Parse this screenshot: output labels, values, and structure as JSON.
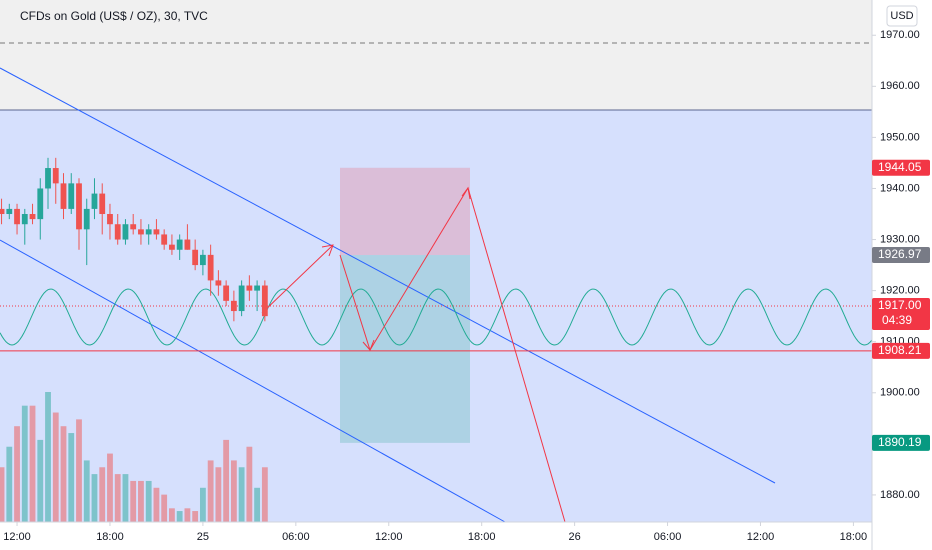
{
  "chart_data": {
    "type": "candlestick",
    "title": "CFDs on Gold (US$ / OZ), 30, TVC",
    "currency": "USD",
    "up_color": "#26a69a",
    "down_color": "#ef5350",
    "x": [
      -1,
      -0.5,
      0,
      0.5,
      1,
      1.5,
      2,
      2.5,
      3,
      3.5,
      4,
      4.5,
      5,
      5.5,
      6,
      6.5,
      7,
      7.5,
      8,
      8.5,
      9,
      9.5,
      10,
      10.5,
      11,
      11.5,
      12,
      12.5,
      13,
      13.5,
      14,
      14.5,
      15,
      15.5,
      16
    ],
    "open": [
      1936,
      1935,
      1936,
      1933,
      1935,
      1934,
      1940,
      1944,
      1941,
      1936,
      1941,
      1932,
      1936,
      1939,
      1935,
      1933,
      1930,
      1933,
      1932,
      1931,
      1932,
      1931,
      1929,
      1928,
      1930,
      1928,
      1925,
      1927,
      1922,
      1921,
      1918,
      1916,
      1921,
      1920,
      1921
    ],
    "high": [
      1938,
      1937,
      1937,
      1936,
      1937,
      1942,
      1946,
      1946,
      1943,
      1943,
      1942,
      1938,
      1942,
      1941,
      1937,
      1935,
      1934,
      1935,
      1934,
      1933,
      1934,
      1932,
      1931,
      1931,
      1933,
      1930,
      1928,
      1929,
      1924,
      1922,
      1920,
      1922,
      1923,
      1922,
      1922
    ],
    "low": [
      1933,
      1934,
      1931,
      1929,
      1933,
      1930,
      1936,
      1937,
      1934,
      1935,
      1928,
      1925,
      1934,
      1931,
      1930,
      1929,
      1929,
      1931,
      1929,
      1929,
      1930,
      1928,
      1927,
      1926,
      1928,
      1924,
      1923,
      1919,
      1919,
      1917,
      1914,
      1915,
      1918,
      1916,
      1914
    ],
    "close": [
      1935,
      1936,
      1933,
      1935,
      1934,
      1940,
      1944,
      1941,
      1936,
      1941,
      1932,
      1936,
      1939,
      1935,
      1933,
      1930,
      1933,
      1932,
      1931,
      1932,
      1931,
      1929,
      1928,
      1930,
      1928,
      1925,
      1927,
      1922,
      1921,
      1918,
      1916,
      1921,
      1920,
      1921,
      1915
    ],
    "volume": [
      40,
      55,
      70,
      85,
      85,
      60,
      95,
      80,
      70,
      65,
      75,
      45,
      35,
      40,
      50,
      35,
      35,
      30,
      30,
      30,
      25,
      20,
      10,
      8,
      10,
      8,
      25,
      45,
      40,
      60,
      45,
      40,
      55,
      25,
      40
    ],
    "xlim": [
      -1.1,
      55.2
    ],
    "ylim": [
      1874.7,
      1976.9
    ],
    "xticks": [
      {
        "value": 0,
        "label": "12:00"
      },
      {
        "value": 6,
        "label": "18:00"
      },
      {
        "value": 12,
        "label": "25"
      },
      {
        "value": 18,
        "label": "06:00"
      },
      {
        "value": 24,
        "label": "12:00"
      },
      {
        "value": 30,
        "label": "18:00"
      },
      {
        "value": 36,
        "label": "26"
      },
      {
        "value": 42,
        "label": "06:00"
      },
      {
        "value": 48,
        "label": "12:00"
      },
      {
        "value": 54,
        "label": "18:00"
      }
    ],
    "yticks": [
      {
        "value": 1880,
        "label": "1880.00"
      },
      {
        "value": 1890,
        "label": "1890.00"
      },
      {
        "value": 1900,
        "label": "1900.00"
      },
      {
        "value": 1910,
        "label": "1910.00"
      },
      {
        "value": 1920,
        "label": "1920.00"
      },
      {
        "value": 1930,
        "label": "1930.00"
      },
      {
        "value": 1940,
        "label": "1940.00"
      },
      {
        "value": 1950,
        "label": "1950.00"
      },
      {
        "value": 1960,
        "label": "1960.00"
      },
      {
        "value": 1970,
        "label": "1970.00"
      }
    ],
    "price_labels": [
      {
        "value": 1944.05,
        "label": "1944.05",
        "color": "#f23645"
      },
      {
        "value": 1926.97,
        "label": "1926.97",
        "color": "#787b86"
      },
      {
        "value": 1917,
        "label": "1917.00",
        "color": "#f23645",
        "countdown": "04:39"
      },
      {
        "value": 1908.21,
        "label": "1908.21",
        "color": "#f23645"
      },
      {
        "value": 1890.19,
        "label": "1890.19",
        "color": "#089981"
      }
    ]
  }
}
